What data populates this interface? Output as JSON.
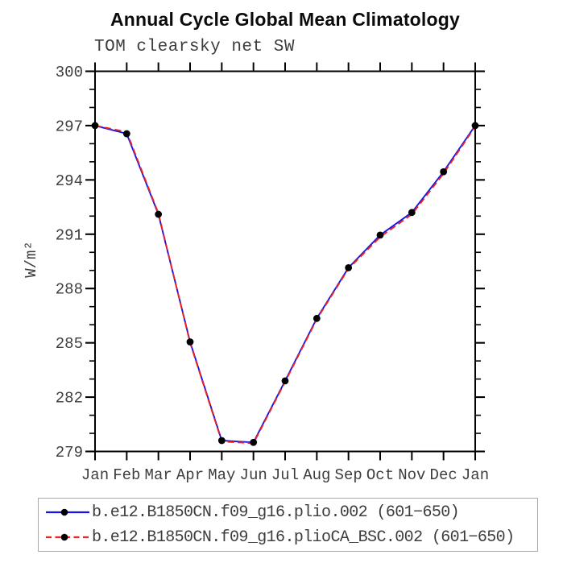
{
  "title": "Annual Cycle Global Mean Climatology",
  "subtitle": "TOM clearsky net SW",
  "colors": {
    "axis": "#000000",
    "tick_label": "#3d3d3d",
    "series1_line": "#1414e6",
    "series2_line": "#ee2222",
    "marker": "#000000",
    "legend_border": "#a9a9a9",
    "background": "#ffffff"
  },
  "chart_data": {
    "type": "line",
    "title": "Annual Cycle Global Mean Climatology",
    "subtitle": "TOM clearsky net SW",
    "xlabel": "",
    "ylabel": "W/m²",
    "categories": [
      "Jan",
      "Feb",
      "Mar",
      "Apr",
      "May",
      "Jun",
      "Jul",
      "Aug",
      "Sep",
      "Oct",
      "Nov",
      "Dec",
      "Jan"
    ],
    "ylim": [
      279,
      300
    ],
    "ytick_major": [
      279,
      282,
      285,
      288,
      291,
      294,
      297,
      300
    ],
    "ytick_minor_step": 1,
    "grid": false,
    "legend_position": "bottom",
    "series": [
      {
        "name": "b.e12.B1850CN.f09_g16.plio.002 (601−650)",
        "color": "#1414e6",
        "style": "solid",
        "marker": "circle",
        "marker_color": "#000000",
        "values": [
          297.0,
          296.55,
          292.1,
          285.05,
          279.6,
          279.5,
          282.9,
          286.35,
          289.15,
          290.95,
          292.2,
          294.45,
          297.0
        ]
      },
      {
        "name": "b.e12.B1850CN.f09_g16.plioCA_BSC.002 (601−650)",
        "color": "#ee2222",
        "style": "dashed",
        "marker": "circle",
        "marker_color": "#000000",
        "values": [
          297.0,
          296.65,
          292.15,
          285.0,
          279.55,
          279.45,
          282.85,
          286.3,
          289.1,
          290.85,
          292.1,
          294.35,
          296.95
        ]
      }
    ]
  }
}
